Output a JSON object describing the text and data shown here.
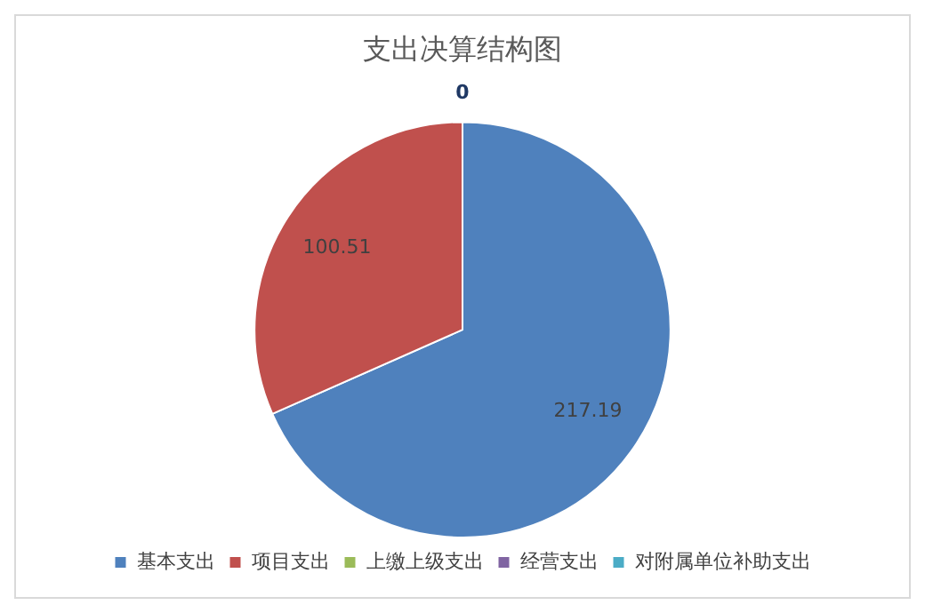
{
  "chart_data": {
    "type": "pie",
    "title": "支出决算结构图",
    "categories": [
      "基本支出",
      "项目支出",
      "上缴上级支出",
      "经营支出",
      "对附属单位补助支出"
    ],
    "values": [
      217.19,
      100.51,
      0,
      0,
      0
    ],
    "colors": [
      "#4f81bd",
      "#c0504d",
      "#9bbb59",
      "#8064a2",
      "#4bacc6"
    ],
    "value_labels": [
      "217.19",
      "100.51",
      "0",
      null,
      null
    ],
    "legend": "bottom"
  }
}
